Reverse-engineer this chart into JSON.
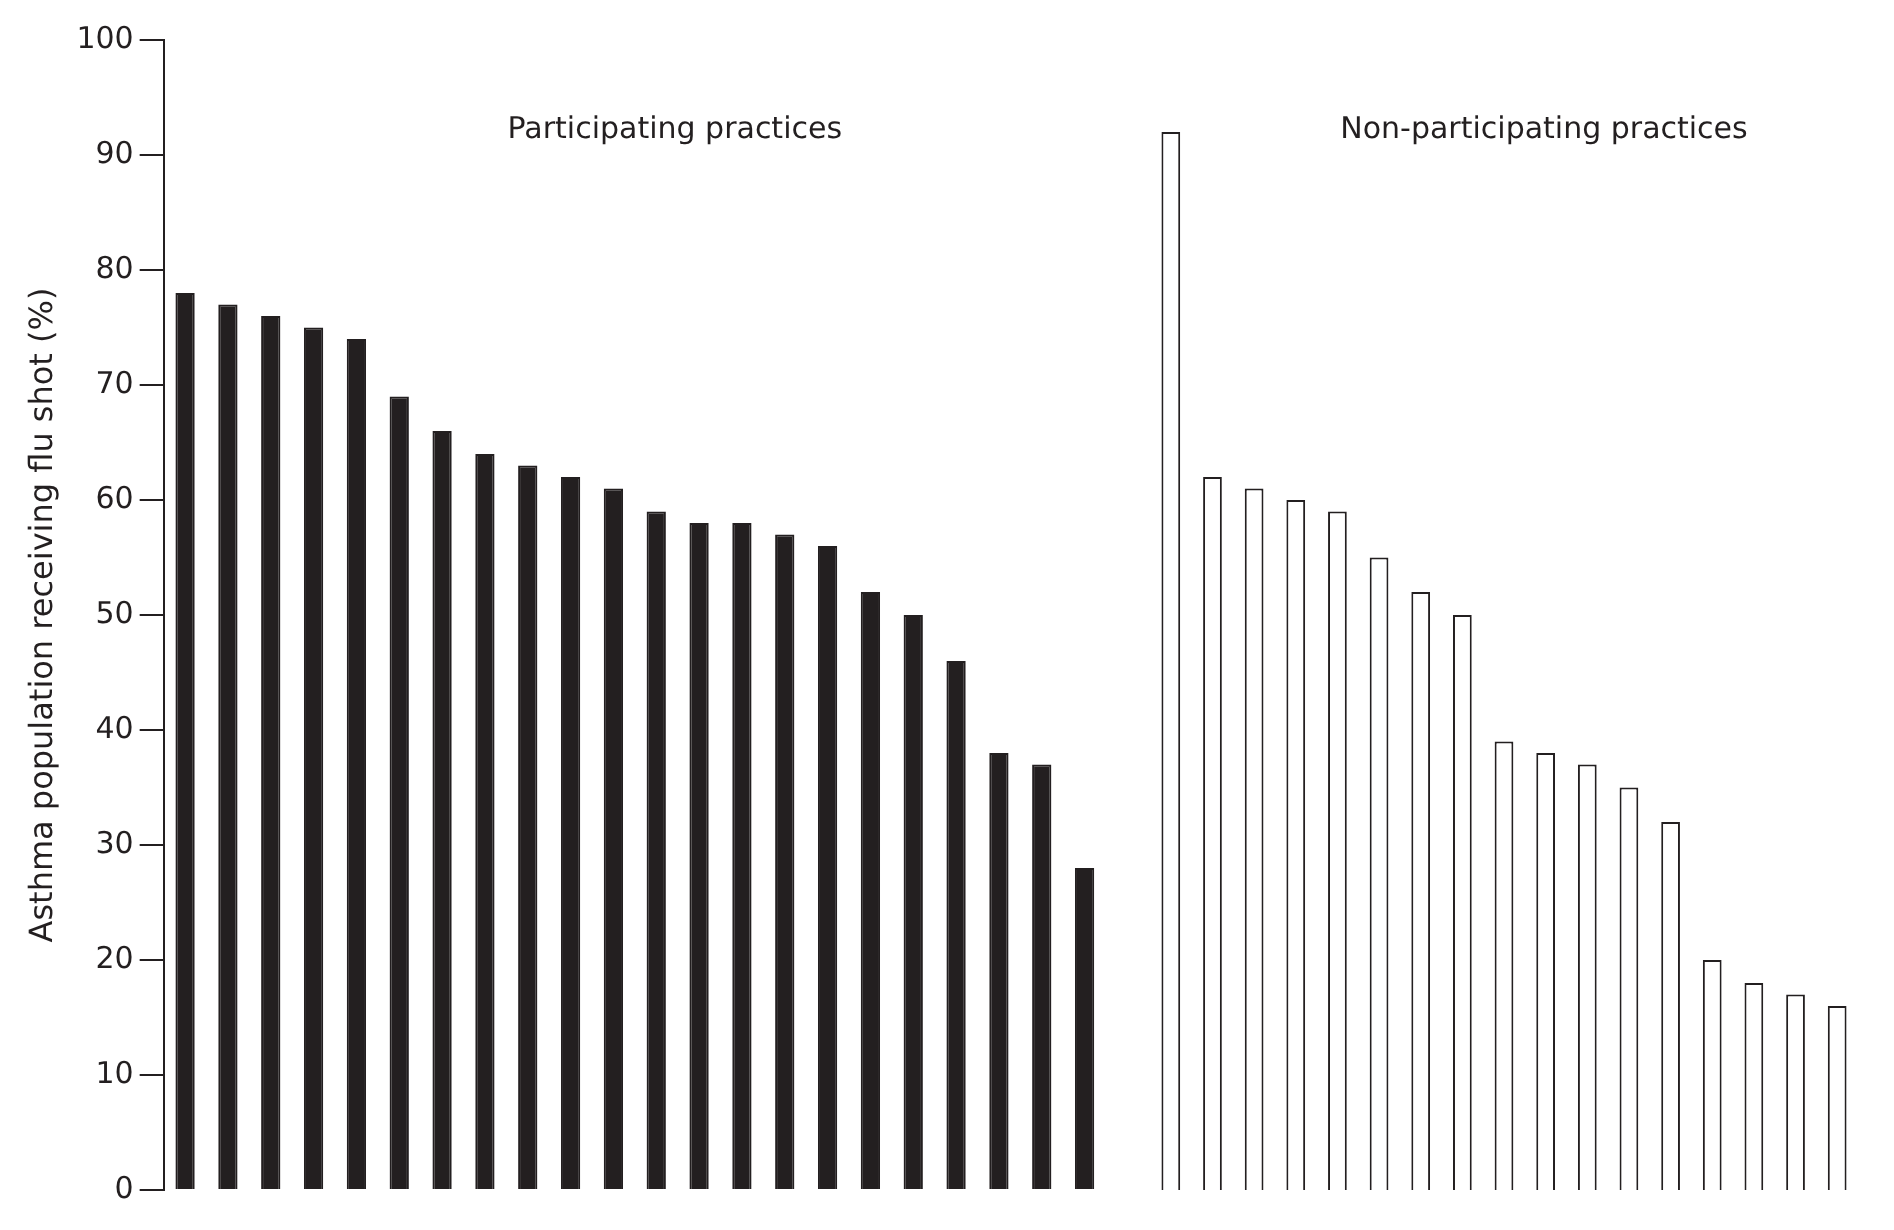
{
  "chart_data": [
    {
      "type": "bar",
      "ylabel": "Asthma population receiving flu shot (%)",
      "annotations": [
        "Participating practices"
      ],
      "categories": [
        null,
        null,
        null,
        null,
        null,
        null,
        null,
        null,
        null,
        null,
        null,
        null,
        null,
        null,
        null,
        null,
        null,
        null,
        null,
        null,
        null,
        null
      ],
      "series": [
        {
          "color": "#231f20",
          "values": [
            78,
            77,
            76,
            75,
            74,
            69,
            66,
            64,
            63,
            62,
            61,
            59,
            58,
            58,
            57,
            56,
            52,
            50,
            46,
            38,
            37,
            28
          ]
        }
      ],
      "ylim": [
        0,
        100
      ],
      "yticks": [
        0,
        10,
        20,
        30,
        40,
        50,
        60,
        70,
        80,
        90,
        100
      ],
      "tick_labels": "y",
      "legend": false
    },
    {
      "type": "bar",
      "annotations": [
        "Non-participating practices"
      ],
      "categories": [
        null,
        null,
        null,
        null,
        null,
        null,
        null,
        null,
        null,
        null,
        null,
        null,
        null,
        null,
        null,
        null,
        null
      ],
      "series": [
        {
          "color": "#ffffff",
          "values": [
            92,
            62,
            61,
            60,
            59,
            55,
            52,
            50,
            39,
            38,
            37,
            35,
            32,
            20,
            18,
            17,
            16
          ]
        }
      ],
      "ylim": [
        0,
        100
      ],
      "yticks": [
        0,
        10,
        20,
        30,
        40,
        50,
        60,
        70,
        80,
        90,
        100
      ],
      "tick_labels": false,
      "legend": false
    }
  ]
}
